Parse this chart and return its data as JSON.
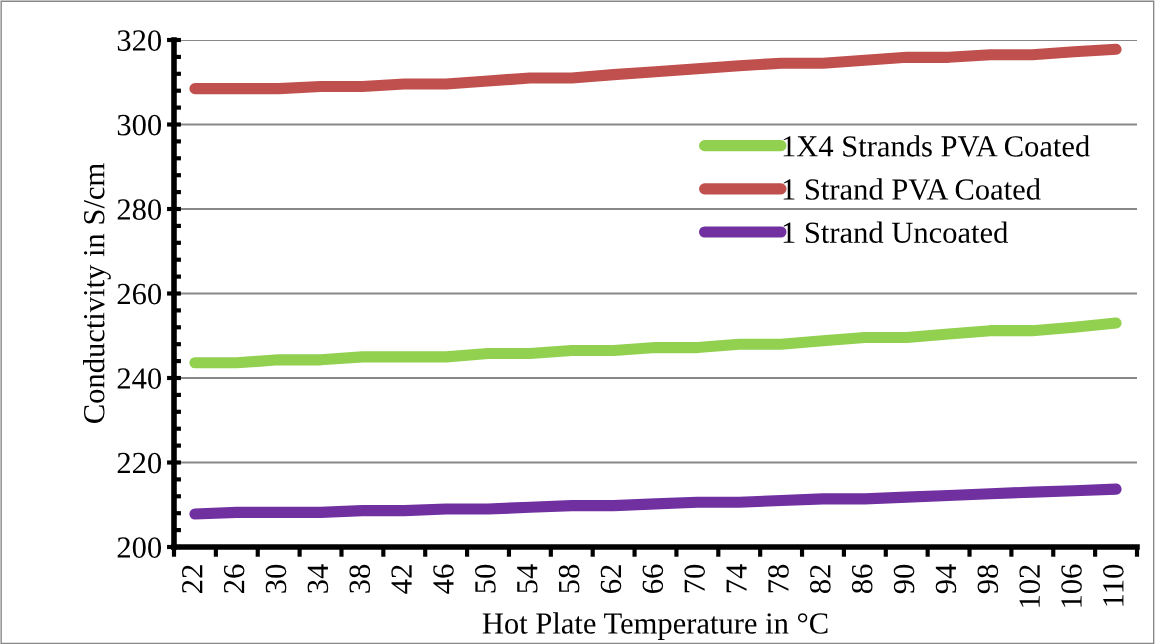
{
  "chart_data": {
    "type": "line",
    "xlabel": "Hot Plate Temperature in °C",
    "ylabel": "Conductivity in S/cm",
    "categories": [
      "22",
      "26",
      "30",
      "34",
      "38",
      "42",
      "46",
      "50",
      "54",
      "58",
      "62",
      "66",
      "70",
      "74",
      "78",
      "82",
      "86",
      "90",
      "94",
      "98",
      "102",
      "106",
      "110"
    ],
    "series": [
      {
        "name": "1X4 Strands PVA Coated",
        "color": "#92d050",
        "values": [
          243.6,
          243.6,
          244.3,
          244.3,
          245,
          245,
          245,
          245.8,
          245.8,
          246.5,
          246.5,
          247.2,
          247.2,
          248,
          248,
          248.8,
          249.6,
          249.6,
          250.4,
          251.2,
          251.2,
          252,
          253
        ]
      },
      {
        "name": "1 Strand PVA Coated",
        "color": "#c0504d",
        "values": [
          308.5,
          308.5,
          308.5,
          309,
          309,
          309.6,
          309.6,
          310.3,
          311,
          311,
          311.8,
          312.5,
          313.2,
          313.9,
          314.5,
          314.5,
          315.2,
          315.9,
          315.9,
          316.5,
          316.5,
          317.2,
          317.8
        ]
      },
      {
        "name": "1 Strand Uncoated",
        "color": "#7030a0",
        "values": [
          207.8,
          208.2,
          208.2,
          208.2,
          208.6,
          208.6,
          209,
          209,
          209.4,
          209.8,
          209.8,
          210.2,
          210.6,
          210.6,
          211,
          211.4,
          211.4,
          211.8,
          212.2,
          212.6,
          213,
          213.3,
          213.7
        ]
      }
    ],
    "ylim": [
      200,
      320
    ],
    "yticks": [
      200,
      220,
      240,
      260,
      280,
      300,
      320
    ],
    "grid": "y",
    "legend": "right",
    "marker": "none",
    "line_style": "solid"
  }
}
